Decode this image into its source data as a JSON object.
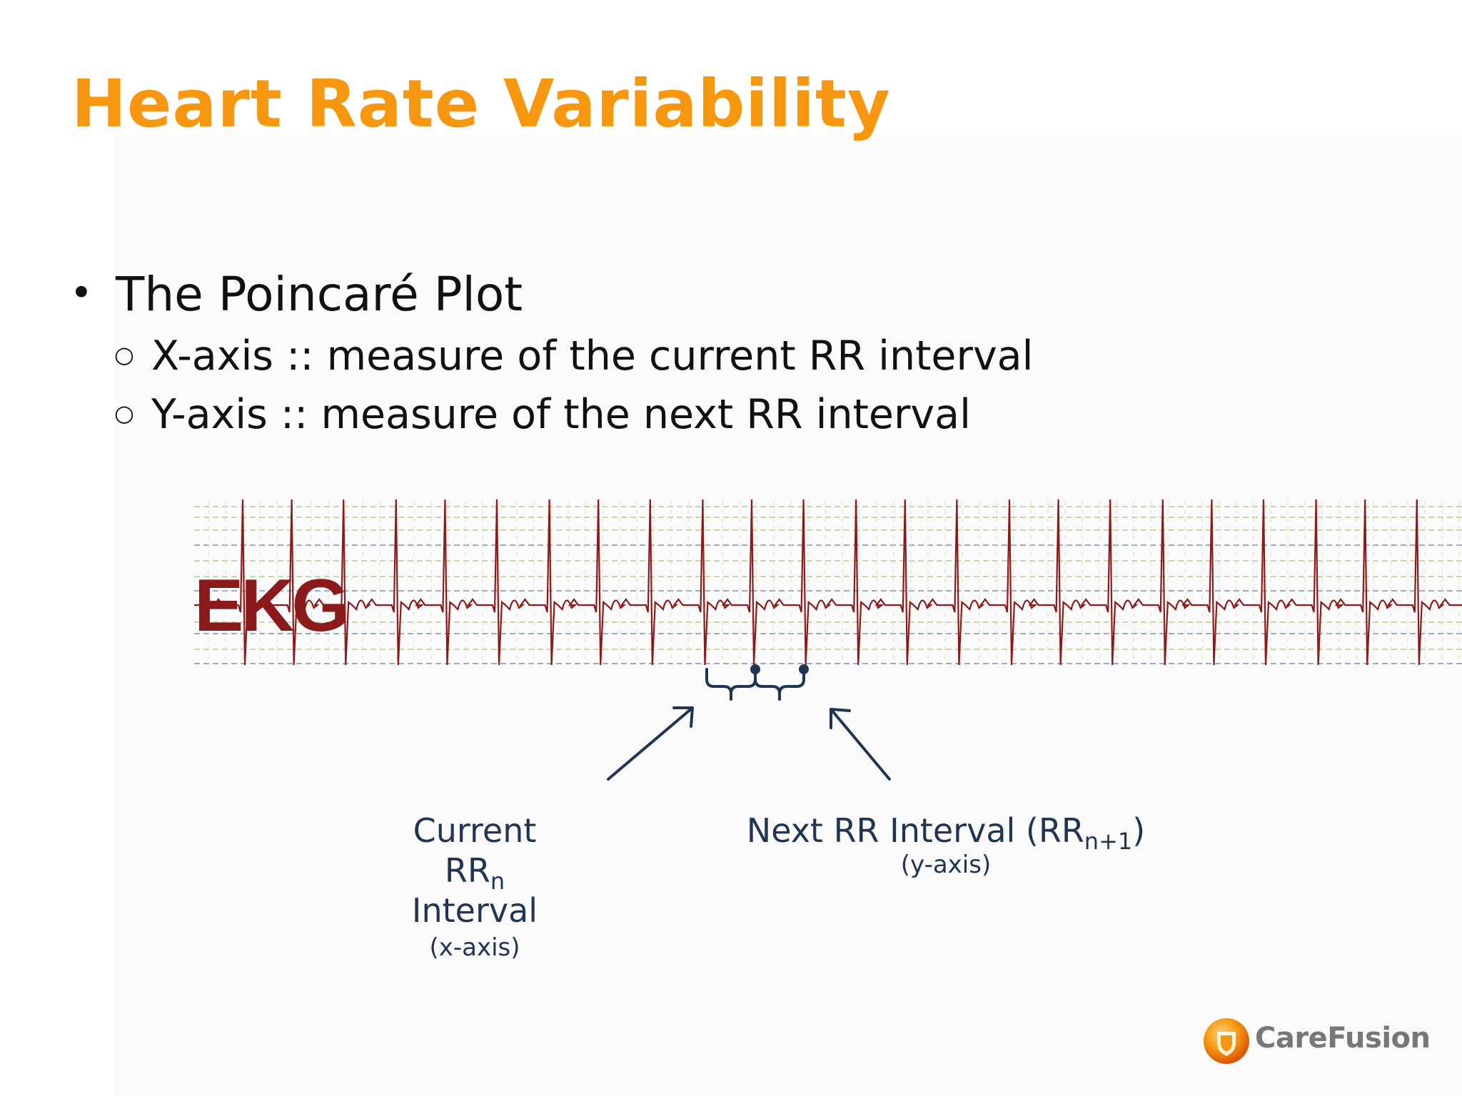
{
  "slide": {
    "title": "Heart Rate Variability",
    "bullet": "The Poincaré Plot",
    "sub_bullets": [
      "X-axis :: measure of the current RR interval",
      "Y-axis :: measure of the next RR interval"
    ]
  },
  "ekg": {
    "label": "EKG",
    "trace_color": "#8b1a1a",
    "grid_color": "#7d8fb8"
  },
  "annotations": {
    "current": {
      "line1": "Current",
      "rr": "RR",
      "rr_sub": "n",
      "line3": "Interval",
      "axis": "(x-axis)"
    },
    "next": {
      "main": "Next RR Interval (RR",
      "sub": "n+1",
      "close": ")",
      "axis": "(y-axis)"
    },
    "marker_color": "#1f3553"
  },
  "logo": {
    "name": "CareFusion",
    "color": "#f7970f"
  },
  "colors": {
    "title": "#f7970f",
    "text": "#111111",
    "annotation": "#1f3553"
  }
}
